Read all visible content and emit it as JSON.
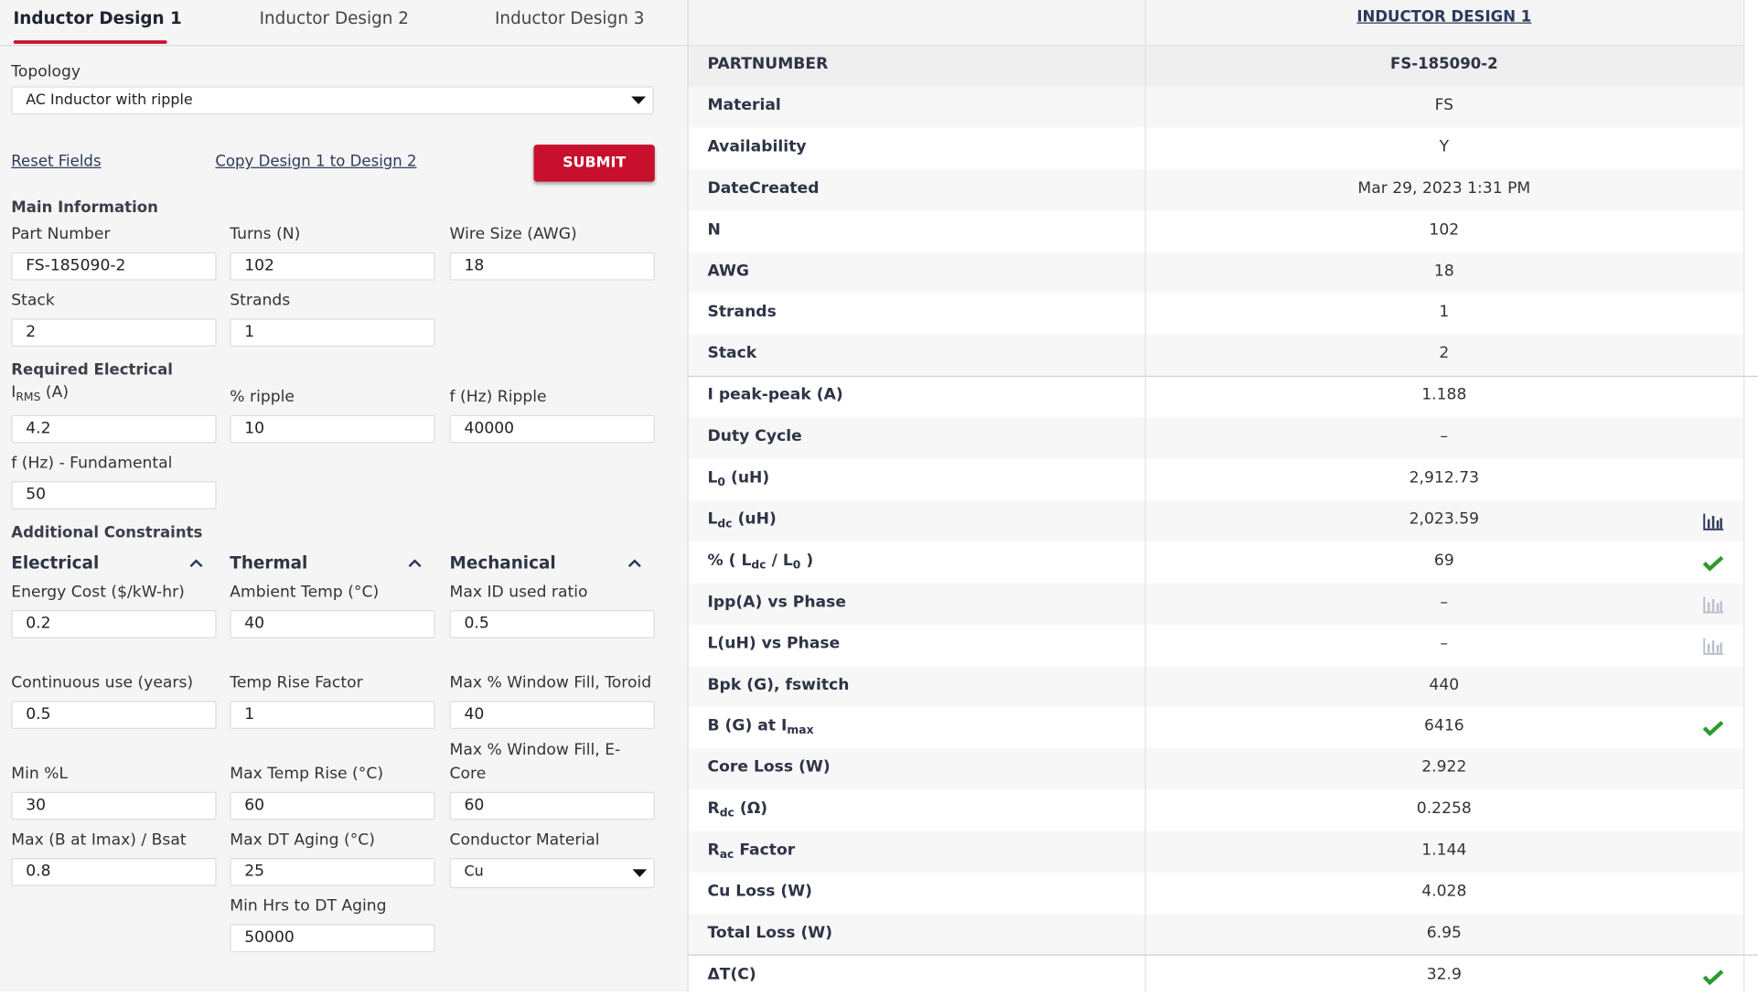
{
  "tabs": {
    "items": [
      "Inductor Design 1",
      "Inductor Design 2",
      "Inductor Design 3"
    ],
    "active": 0
  },
  "form": {
    "topology": {
      "label": "Topology",
      "value": "AC Inductor with ripple"
    },
    "reset_link": "Reset Fields",
    "copy_link": "Copy Design 1 to Design 2",
    "submit": "SUBMIT",
    "main": {
      "title": "Main Information",
      "fields": [
        {
          "label": "Part Number",
          "value": "FS-185090-2"
        },
        {
          "label": "Turns (N)",
          "value": "102"
        },
        {
          "label": "Wire Size (AWG)",
          "value": "18"
        },
        {
          "label": "Stack",
          "value": "2"
        },
        {
          "label": "Strands",
          "value": "1"
        }
      ]
    },
    "electrical": {
      "title": "Required Electrical",
      "fields": [
        {
          "label": [
            "I",
            {
              "sub": "RMS"
            },
            " (A)"
          ],
          "value": "4.2"
        },
        {
          "label": "% ripple",
          "value": "10"
        },
        {
          "label": "f (Hz) Ripple",
          "value": "40000"
        },
        {
          "label": "f (Hz) - Fundamental",
          "value": "50"
        }
      ]
    },
    "constraints": {
      "title": "Additional Constraints",
      "groups": [
        {
          "title": "Electrical",
          "fields": [
            {
              "label": "Energy Cost ($/kW-hr)",
              "value": "0.2"
            },
            {
              "label": "Continuous use (years)",
              "value": "0.5"
            },
            {
              "label": "Min %L",
              "value": "30"
            },
            {
              "label": "Max (B at Imax) / Bsat",
              "value": "0.8"
            }
          ]
        },
        {
          "title": "Thermal",
          "fields": [
            {
              "label": "Ambient Temp (°C)",
              "value": "40"
            },
            {
              "label": "Temp Rise Factor",
              "value": "1"
            },
            {
              "label": "Max Temp Rise (°C)",
              "value": "60"
            },
            {
              "label": "Max DT Aging (°C)",
              "value": "25"
            },
            {
              "label": "Min Hrs to DT Aging",
              "value": "50000"
            }
          ]
        },
        {
          "title": "Mechanical",
          "fields": [
            {
              "label": "Max ID used ratio",
              "value": "0.5"
            },
            {
              "label": "Max % Window Fill, Toroid",
              "value": "40"
            },
            {
              "label": "Max % Window Fill, E-Core",
              "value": "60"
            },
            {
              "label": "Conductor Material",
              "value": "Cu",
              "kind": "select"
            }
          ]
        }
      ]
    }
  },
  "results": {
    "header": "INDUCTOR DESIGN 1",
    "groups": [
      [
        {
          "label": "PARTNUMBER",
          "value": "FS-185090-2",
          "bold": true
        },
        {
          "label": "Material",
          "value": "FS"
        },
        {
          "label": "Availability",
          "value": "Y"
        },
        {
          "label": "DateCreated",
          "value": "Mar 29, 2023 1:31 PM"
        },
        {
          "label": "N",
          "value": "102"
        },
        {
          "label": "AWG",
          "value": "18"
        },
        {
          "label": "Strands",
          "value": "1"
        },
        {
          "label": "Stack",
          "value": "2"
        }
      ],
      [
        {
          "label": "I peak-peak (A)",
          "value": "1.188"
        },
        {
          "label": "Duty Cycle",
          "value": "–"
        },
        {
          "label": [
            "L",
            {
              "sub": "0"
            },
            " (uH)"
          ],
          "value": "2,912.73"
        },
        {
          "label": [
            "L",
            {
              "sub": "dc"
            },
            " (uH)"
          ],
          "value": "2,023.59",
          "icon": "chart"
        },
        {
          "label": [
            "% ( L",
            {
              "sub": "dc"
            },
            " / L",
            {
              "sub": "0"
            },
            " )"
          ],
          "value": "69",
          "icon": "check"
        },
        {
          "label": "Ipp(A) vs Phase",
          "value": "–",
          "icon": "chart-disabled"
        },
        {
          "label": "L(uH) vs Phase",
          "value": "–",
          "icon": "chart-disabled"
        },
        {
          "label": "Bpk (G), fswitch",
          "value": "440"
        },
        {
          "label": [
            "B (G) at I",
            {
              "sub": "max"
            }
          ],
          "value": "6416",
          "icon": "check"
        },
        {
          "label": "Core Loss (W)",
          "value": "2.922"
        },
        {
          "label": [
            "R",
            {
              "sub": "dc"
            },
            " (Ω)"
          ],
          "value": "0.2258"
        },
        {
          "label": [
            "R",
            {
              "sub": "ac"
            },
            " Factor"
          ],
          "value": "1.144"
        },
        {
          "label": "Cu Loss (W)",
          "value": "4.028"
        },
        {
          "label": "Total Loss (W)",
          "value": "6.95"
        }
      ],
      [
        {
          "label": "ΔT(C)",
          "value": "32.9",
          "icon": "check"
        }
      ]
    ]
  }
}
